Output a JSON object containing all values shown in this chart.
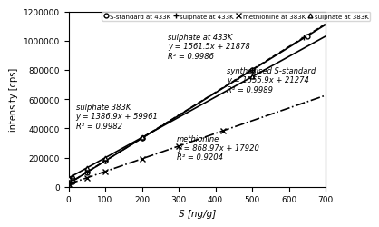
{
  "title": "",
  "xlabel": "S [ng/g]",
  "ylabel": "intensity [cps]",
  "xlim": [
    0,
    700
  ],
  "ylim": [
    0,
    1200000
  ],
  "yticks": [
    0,
    200000,
    400000,
    600000,
    800000,
    1000000,
    1200000
  ],
  "xticks": [
    0,
    100,
    200,
    300,
    400,
    500,
    600,
    700
  ],
  "series": [
    {
      "name": "S-standard at 433K",
      "slope": 1555.9,
      "intercept": 21274,
      "r2": 0.9989,
      "linestyle": "-",
      "color": "black",
      "linewidth": 1.2,
      "marker": "o",
      "marker_facecolor": "white",
      "marker_edgecolor": "black",
      "markersize": 3.5,
      "data_x": [
        0,
        10,
        50,
        100,
        200,
        500,
        650
      ],
      "data_y": [
        21274,
        36833,
        99069,
        176864,
        332454,
        799224,
        1032409
      ],
      "ann_text": "synthesised S-standard\ny = 1555.9x + 21274\nR² = 0.9989",
      "ann_x": 430,
      "ann_y": 640000,
      "ann_ha": "left"
    },
    {
      "name": "sulphate at 433K",
      "slope": 1561.5,
      "intercept": 21878,
      "r2": 0.9986,
      "linestyle": "--",
      "color": "black",
      "linewidth": 1.2,
      "marker": "+",
      "marker_facecolor": "black",
      "marker_edgecolor": "black",
      "markersize": 5,
      "data_x": [
        0,
        10,
        50,
        100,
        200,
        500,
        640
      ],
      "data_y": [
        21878,
        37493,
        102953,
        177928,
        334178,
        802628,
        1021238
      ],
      "ann_text": "sulphate at 433K\ny = 1561.5x + 21878\nR² = 0.9986",
      "ann_x": 270,
      "ann_y": 870000,
      "ann_ha": "left"
    },
    {
      "name": "sulphate at 383K",
      "slope": 1386.9,
      "intercept": 59961,
      "r2": 0.9982,
      "linestyle": "-",
      "color": "black",
      "linewidth": 1.2,
      "marker": "^",
      "marker_facecolor": "white",
      "marker_edgecolor": "black",
      "markersize": 3.5,
      "data_x": [
        0,
        10,
        50,
        100,
        200,
        500
      ],
      "data_y": [
        59961,
        73830,
        129306,
        198651,
        337361,
        753461
      ],
      "ann_text": "sulphate 383K\ny = 1386.9x + 59961\nR² = 0.9982",
      "ann_x": 20,
      "ann_y": 390000,
      "ann_ha": "left"
    },
    {
      "name": "methionine at 383K",
      "slope": 868.97,
      "intercept": 17920,
      "r2": 0.9204,
      "linestyle": "-.",
      "color": "black",
      "linewidth": 1.2,
      "marker": "x",
      "marker_facecolor": "black",
      "marker_edgecolor": "black",
      "markersize": 4.5,
      "data_x": [
        0,
        50,
        100,
        200,
        300,
        420
      ],
      "data_y": [
        17920,
        61369,
        104817,
        191714,
        278611,
        382687
      ],
      "ann_text": "methionine\ny = 868.97x + 17920\nR² = 0.9204",
      "ann_x": 295,
      "ann_y": 175000,
      "ann_ha": "left"
    }
  ],
  "legend_labels": [
    "S-standard at 433K",
    "sulphate at 433K",
    "methionine at 383K",
    "sulphate at 383K"
  ],
  "legend_markers": [
    "o",
    "+",
    "x",
    "^"
  ],
  "legend_facecolors": [
    "white",
    "black",
    "black",
    "white"
  ],
  "legend_edgecolors": [
    "black",
    "black",
    "black",
    "black"
  ],
  "background_color": "#ffffff",
  "font_size": 6.5
}
